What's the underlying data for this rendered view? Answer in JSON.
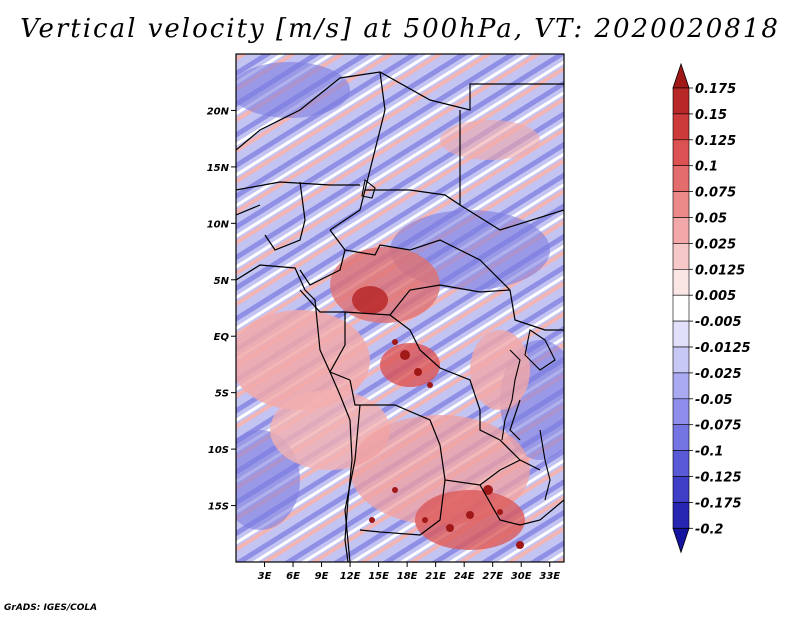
{
  "title": "Vertical velocity [m/s] at 500hPa, VT: 2020020818",
  "credit": "GrADS: IGES/COLA",
  "map": {
    "lon_range": [
      0,
      34.5
    ],
    "lat_range": [
      -20,
      25
    ],
    "lon_ticks": [
      "3E",
      "6E",
      "9E",
      "12E",
      "15E",
      "18E",
      "21E",
      "24E",
      "27E",
      "30E",
      "33E"
    ],
    "lat_ticks": [
      "20N",
      "15N",
      "10N",
      "5N",
      "EQ",
      "5S",
      "10S",
      "15S"
    ]
  },
  "colorbar": {
    "labels": [
      "0.175",
      "0.15",
      "0.125",
      "0.1",
      "0.075",
      "0.05",
      "0.025",
      "0.0125",
      "0.005",
      "-0.005",
      "-0.0125",
      "-0.025",
      "-0.05",
      "-0.075",
      "-0.1",
      "-0.125",
      "-0.175",
      "-0.2"
    ],
    "colors": [
      "#a01818",
      "#b82828",
      "#cc3a3a",
      "#dc5252",
      "#e46c6c",
      "#ec8a8a",
      "#f2a8a8",
      "#f7c8c8",
      "#fbe6e6",
      "#ffffff",
      "#e0e0fb",
      "#c8c8f7",
      "#aaaaf2",
      "#8e8eec",
      "#7474e2",
      "#5a5ad6",
      "#3e3ec6",
      "#2626b2",
      "#1414a0"
    ]
  }
}
